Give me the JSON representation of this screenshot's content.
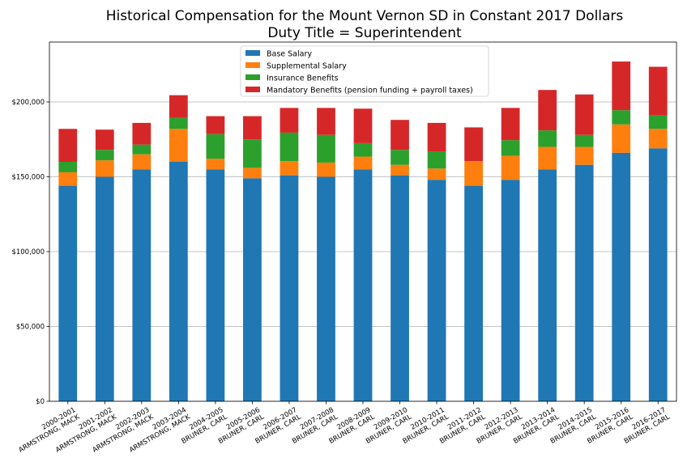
{
  "chart_data": {
    "type": "bar",
    "stacked": true,
    "title": "Historical Compensation for the Mount Vernon SD in Constant 2017 Dollars",
    "subtitle": "Duty Title = Superintendent",
    "xlabel": "",
    "ylabel": "",
    "ylim": [
      0,
      240000
    ],
    "yticks": [
      0,
      50000,
      100000,
      150000,
      200000
    ],
    "ytick_labels": [
      "$0",
      "$50,000",
      "$100,000",
      "$150,000",
      "$200,000"
    ],
    "grid": "horizontal",
    "legend_position": "top-center",
    "categories": [
      [
        "2000-2001",
        "ARMSTRONG, MACK"
      ],
      [
        "2001-2002",
        "ARMSTRONG, MACK"
      ],
      [
        "2002-2003",
        "ARMSTRONG, MACK"
      ],
      [
        "2003-2004",
        "ARMSTRONG, MACK"
      ],
      [
        "2004-2005",
        "BRUNER, CARL"
      ],
      [
        "2005-2006",
        "BRUNER, CARL"
      ],
      [
        "2006-2007",
        "BRUNER, CARL"
      ],
      [
        "2007-2008",
        "BRUNER, CARL"
      ],
      [
        "2008-2009",
        "BRUNER, CARL"
      ],
      [
        "2009-2010",
        "BRUNER, CARL"
      ],
      [
        "2010-2011",
        "BRUNER, CARL"
      ],
      [
        "2011-2012",
        "BRUNER, CARL"
      ],
      [
        "2012-2013",
        "BRUNER, CARL"
      ],
      [
        "2013-2014",
        "BRUNER, CARL"
      ],
      [
        "2014-2015",
        "BRUNER, CARL"
      ],
      [
        "2015-2016",
        "BRUNER, CARL"
      ],
      [
        "2016-2017",
        "BRUNER, CARL"
      ]
    ],
    "series": [
      {
        "name": "Base Salary",
        "color": "#1f77b4",
        "values": [
          144000,
          150000,
          155000,
          160000,
          155000,
          149000,
          151000,
          150000,
          155000,
          151000,
          148000,
          144000,
          148000,
          155000,
          158000,
          166000,
          169000
        ]
      },
      {
        "name": "Supplemental Salary",
        "color": "#ff7f0e",
        "values": [
          9000,
          11000,
          10000,
          22000,
          7000,
          7000,
          9500,
          9500,
          8500,
          7000,
          7500,
          16500,
          16000,
          15000,
          12000,
          19000,
          13000
        ]
      },
      {
        "name": "Insurance Benefits",
        "color": "#2ca02c",
        "values": [
          7000,
          7000,
          6500,
          7500,
          16500,
          19000,
          19000,
          18500,
          9000,
          10000,
          11500,
          0,
          10500,
          11000,
          8000,
          9500,
          9000
        ]
      },
      {
        "name": "Mandatory Benefits (pension funding + payroll taxes)",
        "color": "#d62728",
        "values": [
          22000,
          13500,
          14500,
          15000,
          12000,
          15500,
          16500,
          18000,
          23000,
          20000,
          19000,
          22500,
          21500,
          27000,
          27000,
          32500,
          32500
        ]
      }
    ]
  }
}
